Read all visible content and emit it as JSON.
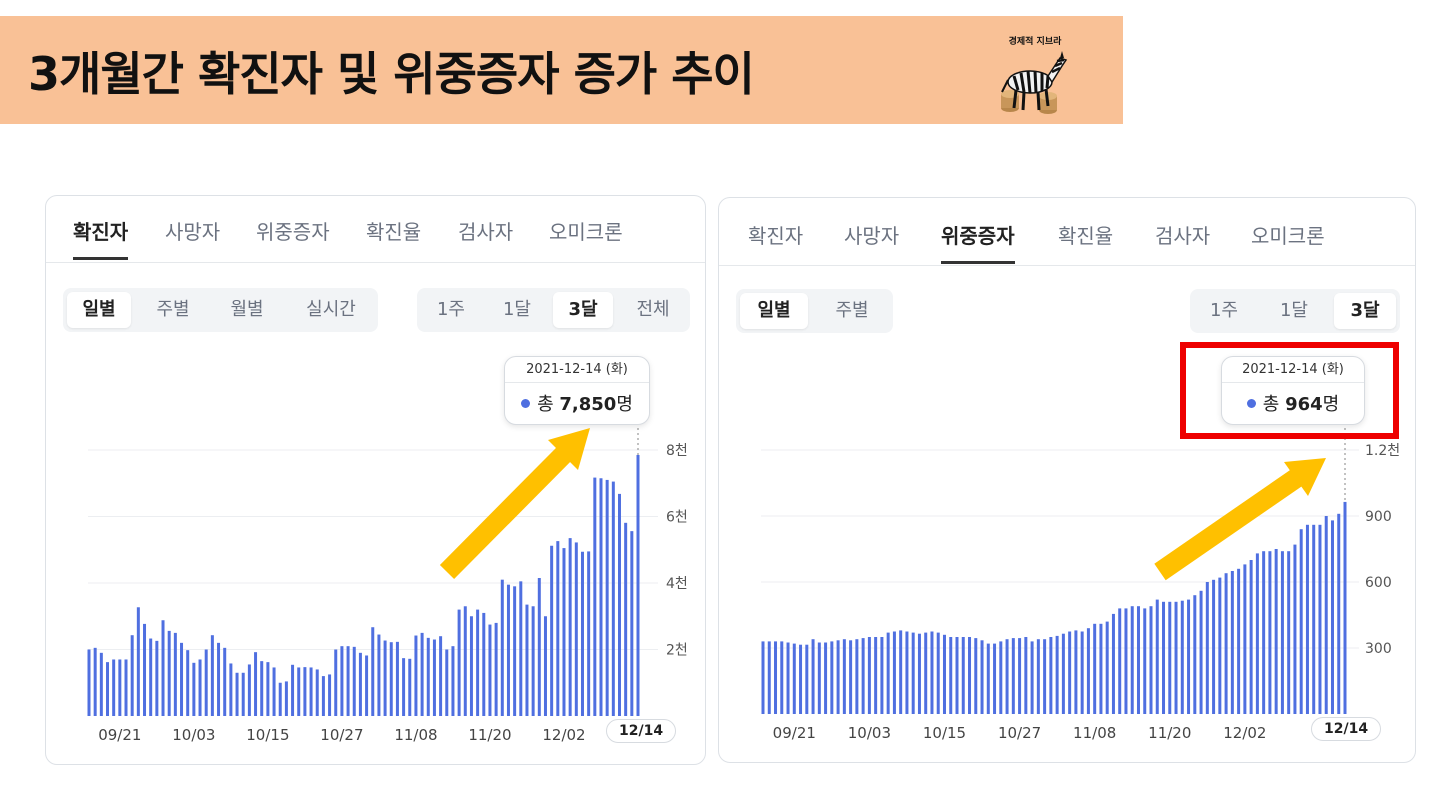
{
  "header": {
    "title": "3개월간 확진자 및 위중증자 증가 추이",
    "logo_text": "경제적 지브라",
    "banner_color": "#f9c196"
  },
  "left_panel": {
    "tabs": [
      "확진자",
      "사망자",
      "위중증자",
      "확진율",
      "검사자",
      "오미크론"
    ],
    "active_tab": 0,
    "period_unit_options": [
      "일별",
      "주별",
      "월별",
      "실시간"
    ],
    "active_period_unit": 0,
    "range_options": [
      "1주",
      "1달",
      "3달",
      "전체"
    ],
    "active_range": 2,
    "tooltip": {
      "date": "2021-12-14 (화)",
      "prefix": "총",
      "value": "7,850",
      "suffix": "명"
    },
    "last_date_label": "12/14"
  },
  "right_panel": {
    "tabs": [
      "확진자",
      "사망자",
      "위중증자",
      "확진율",
      "검사자",
      "오미크론"
    ],
    "active_tab": 2,
    "period_unit_options": [
      "일별",
      "주별"
    ],
    "active_period_unit": 0,
    "range_options": [
      "1주",
      "1달",
      "3달"
    ],
    "active_range": 2,
    "tooltip": {
      "date": "2021-12-14 (화)",
      "prefix": "총",
      "value": "964",
      "suffix": "명"
    },
    "last_date_label": "12/14",
    "highlight_color": "#ee0000"
  },
  "colors": {
    "bar": "#4f6fe0",
    "arrow": "#ffc000",
    "grid": "#eceef1"
  },
  "chart_data": [
    {
      "type": "bar",
      "title": "",
      "xlabel": "",
      "ylabel": "",
      "x_tick_labels": [
        "09/21",
        "10/03",
        "10/15",
        "10/27",
        "11/08",
        "11/20",
        "12/02"
      ],
      "y_tick_labels": [
        "2천",
        "4천",
        "6천",
        "8천"
      ],
      "y_ticks": [
        2000,
        4000,
        6000,
        8000
      ],
      "ylim": [
        0,
        8000
      ],
      "grid": true,
      "values": [
        2000,
        2050,
        1900,
        1620,
        1700,
        1700,
        1700,
        2430,
        3270,
        2770,
        2330,
        2260,
        2880,
        2560,
        2500,
        2200,
        1980,
        1600,
        1700,
        2000,
        2430,
        2200,
        2050,
        1580,
        1300,
        1300,
        1550,
        1920,
        1650,
        1620,
        1460,
        1000,
        1040,
        1540,
        1460,
        1470,
        1460,
        1400,
        1200,
        1250,
        2000,
        2100,
        2100,
        2080,
        1900,
        1820,
        2670,
        2450,
        2270,
        2220,
        2230,
        1740,
        1720,
        2420,
        2500,
        2350,
        2300,
        2400,
        2000,
        2100,
        3200,
        3300,
        3000,
        3200,
        3100,
        2750,
        2800,
        4100,
        3950,
        3900,
        4050,
        3350,
        3300,
        4150,
        3000,
        5120,
        5260,
        5050,
        5350,
        5220,
        4940,
        4950,
        7170,
        7150,
        7100,
        7050,
        6680,
        5810,
        5560,
        7850
      ]
    },
    {
      "type": "bar",
      "title": "",
      "xlabel": "",
      "ylabel": "",
      "x_tick_labels": [
        "09/21",
        "10/03",
        "10/15",
        "10/27",
        "11/08",
        "11/20",
        "12/02"
      ],
      "y_tick_labels": [
        "300",
        "600",
        "900",
        "1.2천"
      ],
      "y_ticks": [
        300,
        600,
        900,
        1200
      ],
      "ylim": [
        0,
        1200
      ],
      "grid": true,
      "values": [
        330,
        330,
        330,
        330,
        325,
        320,
        315,
        315,
        340,
        325,
        325,
        330,
        335,
        340,
        335,
        340,
        345,
        350,
        350,
        350,
        370,
        375,
        380,
        375,
        370,
        365,
        370,
        375,
        370,
        360,
        350,
        350,
        350,
        350,
        345,
        335,
        320,
        320,
        330,
        340,
        345,
        345,
        350,
        330,
        340,
        340,
        350,
        355,
        365,
        375,
        380,
        375,
        390,
        410,
        410,
        420,
        455,
        480,
        480,
        490,
        490,
        480,
        490,
        520,
        510,
        510,
        510,
        515,
        520,
        540,
        560,
        600,
        610,
        620,
        640,
        650,
        660,
        680,
        700,
        730,
        740,
        740,
        750,
        740,
        740,
        770,
        840,
        860,
        860,
        860,
        900,
        880,
        910,
        964
      ]
    }
  ]
}
